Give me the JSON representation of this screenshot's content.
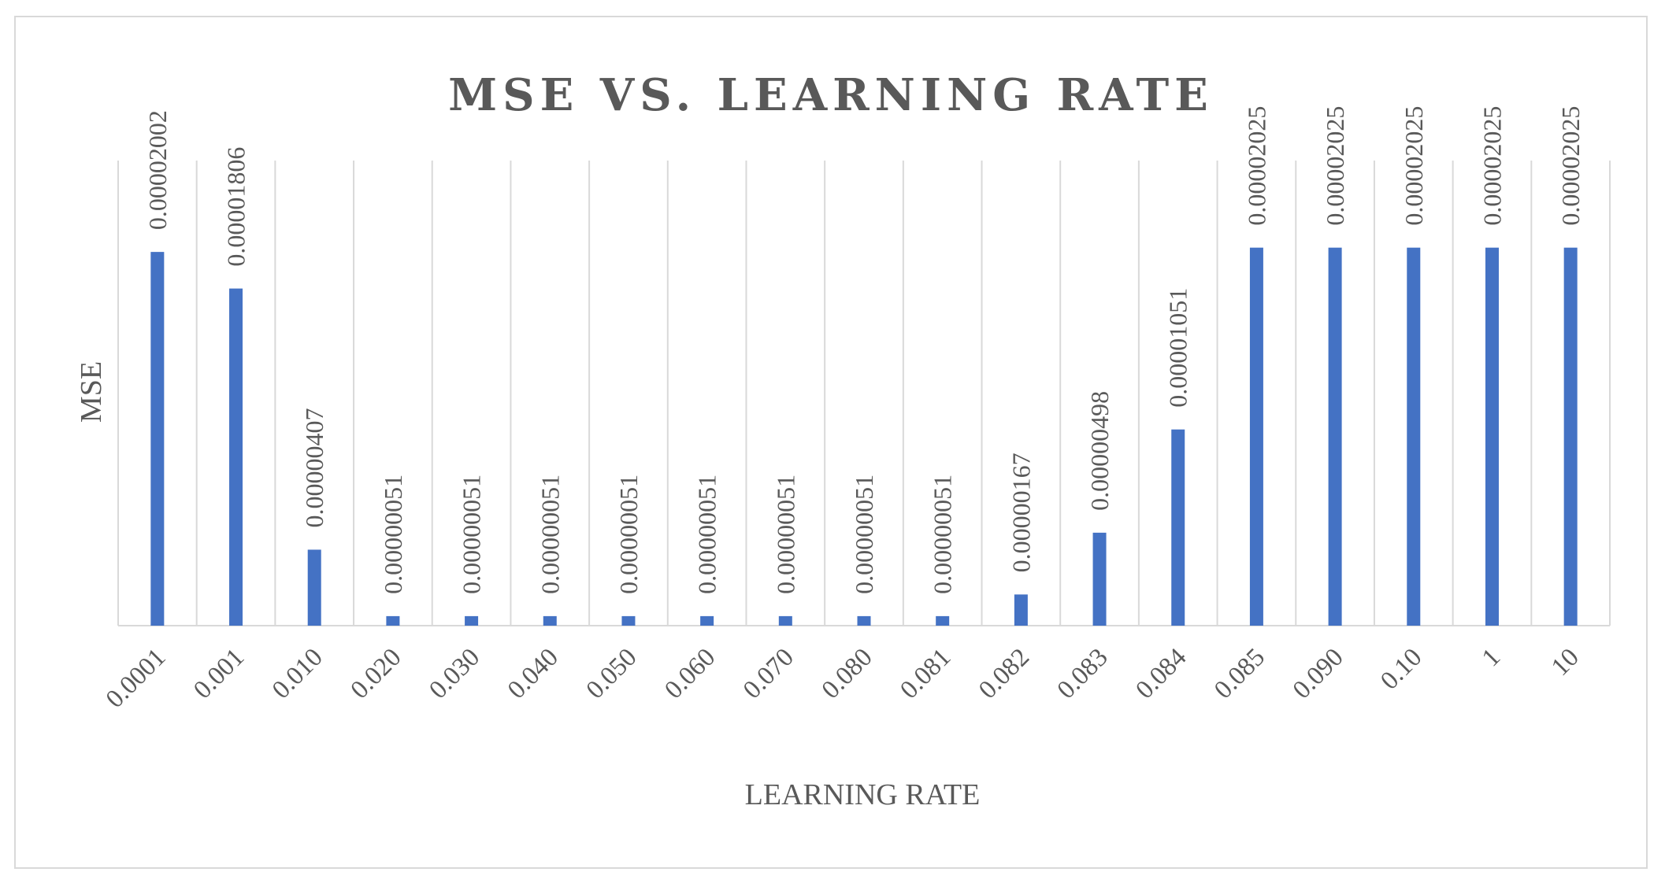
{
  "chart_data": {
    "type": "bar",
    "title": "MSE VS. LEARNING RATE",
    "xlabel": "LEARNING RATE",
    "ylabel": "MSE",
    "categories": [
      "0.0001",
      "0.001",
      "0.010",
      "0.020",
      "0.030",
      "0.040",
      "0.050",
      "0.060",
      "0.070",
      "0.080",
      "0.081",
      "0.082",
      "0.083",
      "0.084",
      "0.085",
      "0.090",
      "0.10",
      "1",
      "10"
    ],
    "values": [
      2.002e-05,
      1.806e-05,
      4.07e-06,
      5.1e-07,
      5.1e-07,
      5.1e-07,
      5.1e-07,
      5.1e-07,
      5.1e-07,
      5.1e-07,
      5.1e-07,
      1.67e-06,
      4.98e-06,
      1.051e-05,
      2.025e-05,
      2.025e-05,
      2.025e-05,
      2.025e-05,
      2.025e-05
    ],
    "data_labels": [
      "0.00002002",
      "0.00001806",
      "0.00000407",
      "0.00000051",
      "0.00000051",
      "0.00000051",
      "0.00000051",
      "0.00000051",
      "0.00000051",
      "0.00000051",
      "0.00000051",
      "0.00000167",
      "0.00000498",
      "0.00001051",
      "0.00002025",
      "0.00002025",
      "0.00002025",
      "0.00002025",
      "0.00002025"
    ],
    "ylim": [
      0,
      2.5e-05
    ],
    "y_ticks_shown": false,
    "grid": "vertical",
    "legend": "none",
    "bar_color": "#4472c4",
    "grid_color": "#d9d9d9",
    "text_color": "#595959"
  }
}
